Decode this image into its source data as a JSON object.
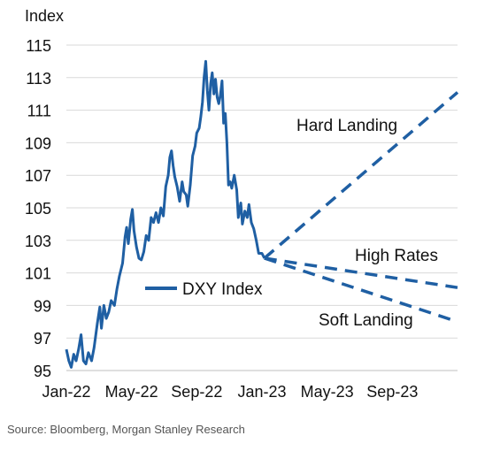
{
  "chart_data": {
    "type": "line",
    "title": "",
    "ylabel": "Index",
    "xlabel": "",
    "source": "Source: Bloomberg, Morgan Stanley Research",
    "ylim": [
      95,
      115
    ],
    "y_ticks": [
      95,
      97,
      99,
      101,
      103,
      105,
      107,
      109,
      111,
      113,
      115
    ],
    "x_ticks": [
      {
        "label": "Jan-22",
        "month": 0
      },
      {
        "label": "May-22",
        "month": 4
      },
      {
        "label": "Sep-22",
        "month": 8
      },
      {
        "label": "Jan-23",
        "month": 12
      },
      {
        "label": "May-23",
        "month": 16
      },
      {
        "label": "Sep-23",
        "month": 20
      }
    ],
    "xlim_months": [
      0,
      24
    ],
    "grid": true,
    "line_color": "#1f5fa3",
    "series": [
      {
        "name": "DXY Index",
        "style": "solid",
        "points": [
          [
            0.0,
            96.3
          ],
          [
            0.15,
            95.6
          ],
          [
            0.3,
            95.2
          ],
          [
            0.45,
            96.0
          ],
          [
            0.6,
            95.6
          ],
          [
            0.75,
            96.3
          ],
          [
            0.9,
            97.2
          ],
          [
            1.05,
            95.6
          ],
          [
            1.2,
            95.4
          ],
          [
            1.35,
            96.1
          ],
          [
            1.55,
            95.6
          ],
          [
            1.7,
            96.4
          ],
          [
            1.9,
            97.9
          ],
          [
            2.05,
            98.9
          ],
          [
            2.15,
            97.6
          ],
          [
            2.3,
            99.0
          ],
          [
            2.45,
            98.2
          ],
          [
            2.6,
            98.6
          ],
          [
            2.75,
            99.3
          ],
          [
            2.95,
            99.0
          ],
          [
            3.1,
            100.0
          ],
          [
            3.25,
            100.8
          ],
          [
            3.45,
            101.6
          ],
          [
            3.6,
            103.2
          ],
          [
            3.7,
            103.8
          ],
          [
            3.8,
            102.8
          ],
          [
            3.95,
            104.3
          ],
          [
            4.05,
            104.9
          ],
          [
            4.15,
            103.6
          ],
          [
            4.3,
            102.6
          ],
          [
            4.45,
            101.9
          ],
          [
            4.6,
            101.8
          ],
          [
            4.75,
            102.3
          ],
          [
            4.9,
            103.3
          ],
          [
            5.05,
            103.0
          ],
          [
            5.2,
            104.4
          ],
          [
            5.35,
            104.1
          ],
          [
            5.5,
            104.7
          ],
          [
            5.65,
            104.1
          ],
          [
            5.8,
            105.0
          ],
          [
            5.95,
            104.5
          ],
          [
            6.1,
            106.3
          ],
          [
            6.25,
            107.0
          ],
          [
            6.35,
            108.1
          ],
          [
            6.45,
            108.5
          ],
          [
            6.55,
            107.6
          ],
          [
            6.65,
            106.9
          ],
          [
            6.8,
            106.3
          ],
          [
            6.95,
            105.4
          ],
          [
            7.1,
            106.6
          ],
          [
            7.2,
            106.0
          ],
          [
            7.35,
            105.8
          ],
          [
            7.45,
            105.1
          ],
          [
            7.6,
            106.4
          ],
          [
            7.75,
            108.2
          ],
          [
            7.9,
            108.8
          ],
          [
            8.0,
            109.6
          ],
          [
            8.15,
            109.9
          ],
          [
            8.25,
            110.6
          ],
          [
            8.35,
            111.5
          ],
          [
            8.45,
            113.0
          ],
          [
            8.55,
            114.0
          ],
          [
            8.65,
            112.2
          ],
          [
            8.75,
            111.0
          ],
          [
            8.85,
            112.6
          ],
          [
            8.95,
            113.3
          ],
          [
            9.05,
            112.0
          ],
          [
            9.15,
            112.9
          ],
          [
            9.25,
            111.8
          ],
          [
            9.35,
            111.4
          ],
          [
            9.45,
            111.9
          ],
          [
            9.55,
            112.8
          ],
          [
            9.65,
            110.2
          ],
          [
            9.75,
            110.8
          ],
          [
            9.85,
            109.0
          ],
          [
            9.95,
            106.4
          ],
          [
            10.05,
            106.6
          ],
          [
            10.15,
            106.2
          ],
          [
            10.3,
            107.0
          ],
          [
            10.45,
            106.1
          ],
          [
            10.55,
            104.4
          ],
          [
            10.7,
            105.3
          ],
          [
            10.8,
            104.0
          ],
          [
            10.95,
            104.8
          ],
          [
            11.1,
            104.4
          ],
          [
            11.2,
            105.2
          ],
          [
            11.35,
            104.1
          ],
          [
            11.5,
            103.7
          ],
          [
            11.65,
            103.0
          ],
          [
            11.8,
            102.2
          ],
          [
            12.0,
            102.2
          ],
          [
            12.15,
            101.9
          ]
        ]
      },
      {
        "name": "Hard Landing",
        "style": "dashed",
        "points": [
          [
            12.15,
            101.9
          ],
          [
            24.0,
            112.1
          ]
        ]
      },
      {
        "name": "High Rates",
        "style": "dashed",
        "points": [
          [
            12.15,
            101.9
          ],
          [
            24.0,
            100.1
          ]
        ]
      },
      {
        "name": "Soft Landing",
        "style": "dashed",
        "points": [
          [
            12.15,
            101.9
          ],
          [
            24.0,
            98.0
          ]
        ]
      }
    ],
    "legend": {
      "label": "DXY Index",
      "placement": "center-left"
    },
    "annotations": [
      {
        "text": "Hard Landing",
        "series": "Hard Landing"
      },
      {
        "text": "High Rates",
        "series": "High Rates"
      },
      {
        "text": "Soft Landing",
        "series": "Soft Landing"
      }
    ]
  }
}
